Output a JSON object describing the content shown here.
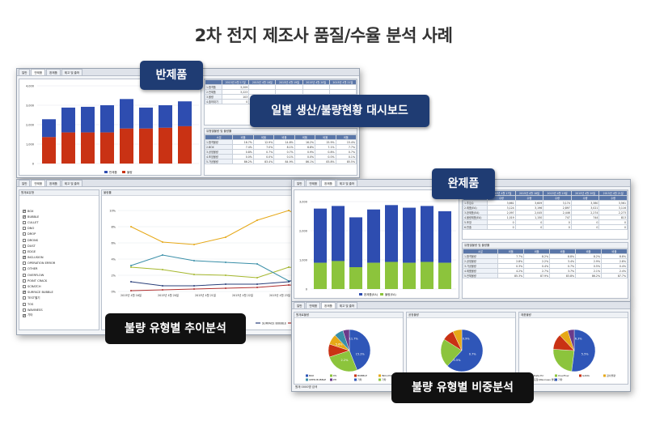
{
  "page_title": "2차 전지 제조사 품질/수율 분석 사례",
  "callouts": {
    "semi_product": "반제품",
    "daily_dashboard": "일별 생산/불량현황 대시보드",
    "finished_product": "완제품",
    "defect_trend": "불량 유형별 추이분석",
    "defect_ratio": "불량 유형별 비중분석"
  },
  "tabs": [
    "일반",
    "반제품",
    "완제품",
    "제고 및 출하"
  ],
  "window1": {
    "yaxis_ticks": [
      "4,000",
      "3,000",
      "2,000",
      "1,000",
      "0"
    ],
    "legend": [
      "반제품",
      "불량"
    ],
    "table_top_headers": [
      "2015년 4월 17일",
      "2015년 4월 18일",
      "2015년 4월 19일",
      "2015년 4월 20일",
      "2015년 4월 21일",
      "2015년 4월 22일",
      "2015년 4월 23일"
    ],
    "table_top_rows": [
      {
        "label": "1.합격품",
        "value": "3,209"
      },
      {
        "label": "2.반제품",
        "value": "3,223"
      },
      {
        "label": "3.불량",
        "value": "103"
      },
      {
        "label": "4.출하대기",
        "value": "0"
      }
    ],
    "table_bottom_caption": "유형별불량 및 불량률",
    "table_bottom_headers": [
      "소분",
      "비율",
      "비율",
      "비율",
      "비율",
      "비율",
      "비율"
    ],
    "table_bottom_rows": [
      {
        "label": "1.합격불량",
        "values": [
          "16.7%",
          "12.9%",
          "14.8%",
          "16.2%",
          "15.9%",
          "15.4%"
        ]
      },
      {
        "label": "2.BOX",
        "values": [
          "7.4%",
          "7.0%",
          "8.1%",
          "6.8%",
          "7.1%",
          "7.7%"
        ]
      },
      {
        "label": "3.공정불량",
        "values": [
          "0.8%",
          "0.7%",
          "0.7%",
          "0.9%",
          "0.8%",
          "0.7%"
        ]
      },
      {
        "label": "4.포장불량",
        "values": [
          "0.0%",
          "0.0%",
          "0.1%",
          "0.0%",
          "0.0%",
          "0.1%"
        ]
      },
      {
        "label": "5.가공불량",
        "values": [
          "86.2%",
          "83.4%",
          "84.9%",
          "86.1%",
          "83.8%",
          "85.5%"
        ]
      }
    ]
  },
  "window2": {
    "left_caption": "원재료유형",
    "right_caption": "불량률",
    "checklist": [
      {
        "label": "BOX",
        "checked": true
      },
      {
        "label": "BUBBLE",
        "checked": true
      },
      {
        "label": "CULLET",
        "checked": false
      },
      {
        "label": "DNO",
        "checked": false
      },
      {
        "label": "DROP",
        "checked": false
      },
      {
        "label": "DRONS",
        "checked": false
      },
      {
        "label": "DUST",
        "checked": false
      },
      {
        "label": "EDGE",
        "checked": false
      },
      {
        "label": "INCLUSION",
        "checked": true
      },
      {
        "label": "OPERATION ERROR",
        "checked": false
      },
      {
        "label": "OTHER",
        "checked": false
      },
      {
        "label": "OVERFLOW",
        "checked": false
      },
      {
        "label": "POINT CRACK",
        "checked": false
      },
      {
        "label": "SCRATCH",
        "checked": false
      },
      {
        "label": "SURFACE BUBBLE",
        "checked": true
      },
      {
        "label": "TEST별기",
        "checked": false
      },
      {
        "label": "TOS",
        "checked": false
      },
      {
        "label": "WAVINESS",
        "checked": false
      },
      {
        "label": "기타",
        "checked": true
      }
    ],
    "filter_caption": "공정불량",
    "xlabel": "가공일자",
    "yaxis_ticks": [
      "10%",
      "8%",
      "6%",
      "4%",
      "2%",
      "0%"
    ],
    "x_ticks": [
      "2015년 4월 16일",
      "2015년 4월 20일",
      "2015년 4월 21일",
      "2015년 4월 22일",
      "2015년 4월 23일",
      "2015년 4월 24일"
    ],
    "legend": [
      "BOX",
      "BUBBLE",
      "INCLUSION",
      "SURFACE BUBBLE",
      "기타"
    ]
  },
  "window3": {
    "yaxis_ticks": [
      "3,000",
      "2,000",
      "1,000",
      "0"
    ],
    "legend": [
      "완제품(EA)",
      "불량(EA)"
    ],
    "table_top_headers": [
      "2015년 4월 17일",
      "2015년 4월 18일",
      "2015년 4월 19일",
      "2015년 4월 20일",
      "2015년 4월 21일",
      "2015년 4월 22일"
    ],
    "table_top_subheaders": [
      "수량",
      "수량",
      "수량",
      "수량",
      "수량",
      "수량"
    ],
    "table_top_rows": [
      {
        "label": "1.투입수",
        "values": [
          "3,661",
          "3,609",
          "3,174",
          "3,380",
          "3,561"
        ]
      },
      {
        "label": "2.제품(EA)",
        "values": [
          "3,124",
          "3,196",
          "2,897",
          "3,021",
          "3,116"
        ]
      },
      {
        "label": "3.완제품(EA)",
        "values": [
          "2,097",
          "2,045",
          "2,446",
          "2,274",
          "2,273"
        ]
      },
      {
        "label": "4.불량제품(EA)",
        "values": [
          "1,019",
          "1,150",
          "747",
          "744",
          "813"
        ]
      },
      {
        "label": "5.포장",
        "values": [
          "0",
          "0",
          "0",
          "0",
          "0"
        ]
      },
      {
        "label": "6.반출",
        "values": [
          "0",
          "0",
          "0",
          "0",
          "0"
        ]
      }
    ],
    "table_bottom_caption": "유형별불량 및 불량률",
    "table_bottom_headers": [
      "소분",
      "비율",
      "비율",
      "비율",
      "비율",
      "비율"
    ],
    "table_bottom_rows": [
      {
        "label": "1.합격불량",
        "values": [
          "7.7%",
          "8.2%",
          "8.8%",
          "8.2%",
          "8.8%"
        ]
      },
      {
        "label": "2.공정불량",
        "values": [
          "2.8%",
          "2.2%",
          "3.4%",
          "2.9%",
          "2.8%"
        ]
      },
      {
        "label": "3.가공불량",
        "values": [
          "0.3%",
          "0.4%",
          "0.7%",
          "0.5%",
          "0.4%"
        ]
      },
      {
        "label": "4.제품불량",
        "values": [
          "4.2%",
          "2.7%",
          "3.7%",
          "2.1%",
          "2.4%"
        ]
      },
      {
        "label": "5.전체불량",
        "values": [
          "85.3%",
          "87.9%",
          "83.8%",
          "86.2%",
          "87.7%"
        ]
      }
    ]
  },
  "window4": {
    "panels": [
      {
        "caption": "원재료불량",
        "labels": [
          "11.7%",
          "15.2%",
          "2.2%",
          "5.6%"
        ],
        "legend": [
          "BOX",
          "DS",
          "BUBBLE",
          "INCLUSION",
          "OPEN BUBBLE",
          "PH",
          "기타",
          "기타"
        ]
      },
      {
        "caption": "공정불량",
        "labels": [
          "0.9%",
          "0.7%",
          "0.5%"
        ],
        "legend": [
          "가공불량",
          "공정불량"
        ]
      },
      {
        "caption": "제품불량",
        "labels": [
          "6.3%",
          "5.5%"
        ],
        "legend": [
          "Data Err",
          "Overflow",
          "GANG",
          "검사불량",
          "포장(Waviness 불량)",
          "기타"
        ]
      }
    ],
    "footer": "원재 0000명 검색"
  }
}
